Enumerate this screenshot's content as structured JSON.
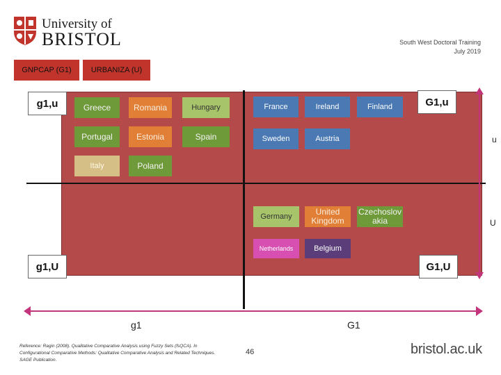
{
  "logo": {
    "line1": "University of",
    "line2": "BRISTOL"
  },
  "header": {
    "org": "South West Doctoral Training",
    "date": "July 2019"
  },
  "tabs": [
    {
      "label": "GNPCAP (G1)"
    },
    {
      "label": "URBANIZA (U)"
    }
  ],
  "corners": {
    "top_left": "g1,u",
    "top_right": "G1,u",
    "bottom_left": "g1,U",
    "bottom_right": "G1,U"
  },
  "side_labels": {
    "upper": "u",
    "lower": "U"
  },
  "countries": {
    "greece": "Greece",
    "romania": "Romania",
    "hungary": "Hungary",
    "portugal": "Portugal",
    "estonia": "Estonia",
    "spain": "Spain",
    "italy": "Italy",
    "poland": "Poland",
    "france": "France",
    "ireland": "Ireland",
    "finland": "Finland",
    "sweden": "Sweden",
    "austria": "Austria",
    "germany": "Germany",
    "united_kingdom": "United Kingdom",
    "czechoslovakia": "Czechoslov akia",
    "netherlands": "Netherlands",
    "belgium": "Belgium"
  },
  "axis": {
    "left": "g1",
    "right": "G1"
  },
  "colors": {
    "panel": "#b44a4a",
    "tab": "#c0342b",
    "axis": "#c2357a"
  },
  "footer": {
    "reference": "Reference: Ragin (2008). Qualitative Comparative Analysis using Fuzzy Sets (fsQCA). In Configurational Comparative Methods: Qualitative Comparative Analysis and Related Techniques. SAGE Publication.",
    "page": "46",
    "site": "bristol.ac.uk"
  }
}
